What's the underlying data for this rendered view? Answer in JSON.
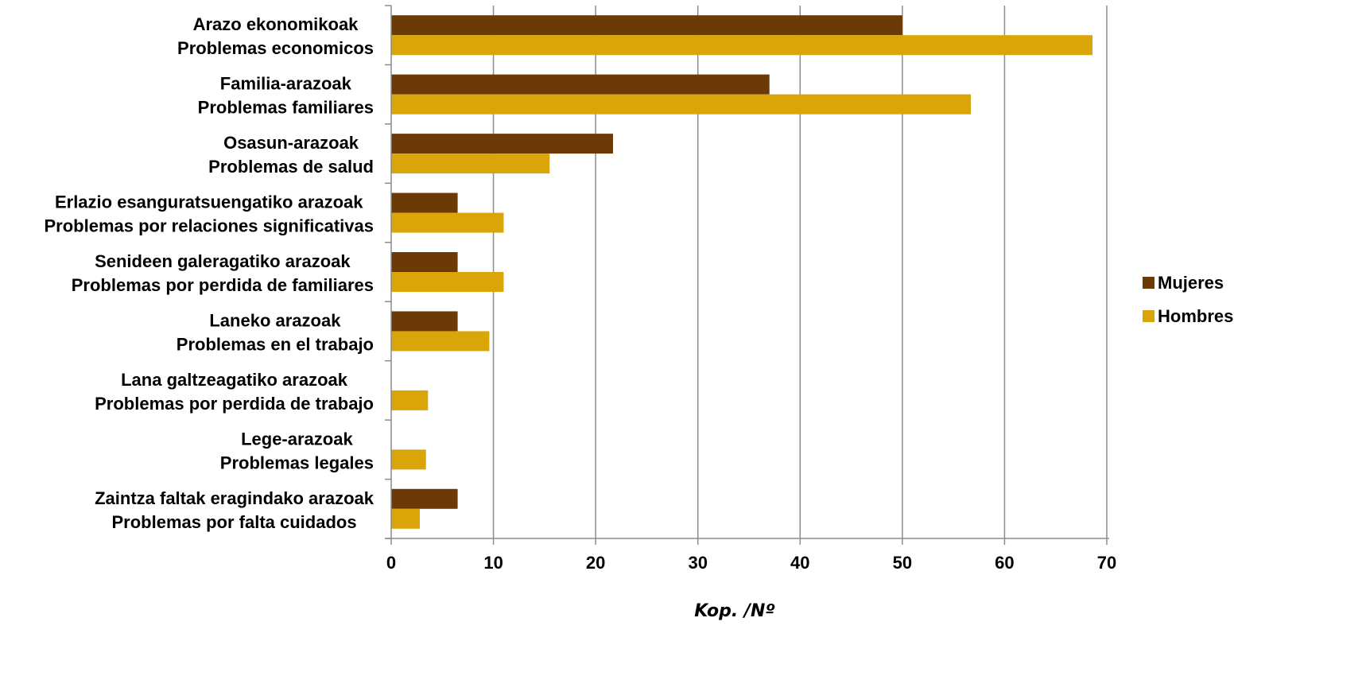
{
  "chart_data": {
    "type": "bar",
    "orientation": "horizontal",
    "categories": [
      [
        "Arazo ekonomikoak",
        "Problemas economicos"
      ],
      [
        "Familia-arazoak",
        "Problemas familiares"
      ],
      [
        "Osasun-arazoak",
        "Problemas de salud"
      ],
      [
        "Erlazio esanguratsuengatiko arazoak",
        "Problemas por relaciones significativas"
      ],
      [
        "Senideen galeragatiko arazoak",
        "Problemas por perdida de familiares"
      ],
      [
        "Laneko arazoak",
        "Problemas en el trabajo"
      ],
      [
        "Lana galtzeagatiko arazoak",
        "Problemas por perdida de trabajo"
      ],
      [
        "Lege-arazoak",
        "Problemas legales"
      ],
      [
        "Zaintza faltak eragindako arazoak",
        "Problemas por falta cuidados"
      ]
    ],
    "series": [
      {
        "name": "Mujeres",
        "color": "#6B3A07",
        "values": [
          50,
          37,
          21.7,
          6.5,
          6.5,
          6.5,
          0,
          0,
          6.5
        ]
      },
      {
        "name": "Hombres",
        "color": "#D9A508",
        "values": [
          68.6,
          56.7,
          15.5,
          11,
          11,
          9.6,
          3.6,
          3.4,
          2.8
        ]
      }
    ],
    "xlabel": "Kop. /Nº",
    "xlim": [
      0,
      70
    ],
    "xticks": [
      0,
      10,
      20,
      30,
      40,
      50,
      60,
      70
    ],
    "grid": true,
    "legend_position": "right"
  }
}
